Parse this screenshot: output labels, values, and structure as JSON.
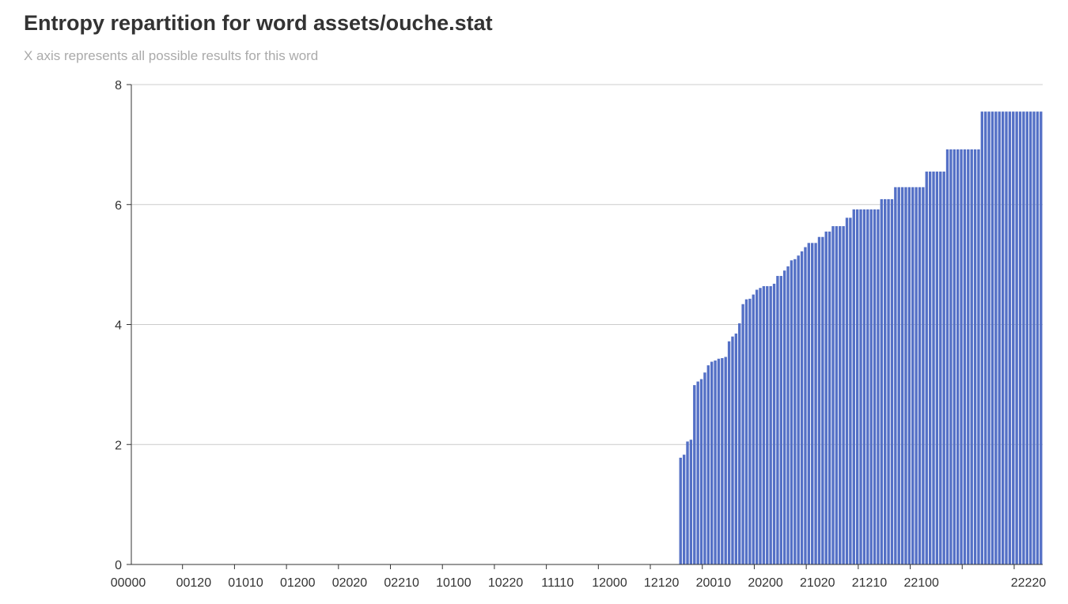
{
  "header": {
    "title": "Entropy repartition for word assets/ouche.stat",
    "subtitle": "X axis represents all possible results for this word"
  },
  "colors": {
    "bar": "#5470c6",
    "grid": "#cccccc",
    "axis": "#333333"
  },
  "chart_data": {
    "type": "bar",
    "title": "Entropy repartition for word assets/ouche.stat",
    "subtitle": "X axis represents all possible results for this word",
    "xlabel": "",
    "ylabel": "",
    "ylim": [
      0,
      8
    ],
    "yticks": [
      0,
      2,
      4,
      6,
      8
    ],
    "grid": true,
    "category_count": 243,
    "xtick_labels": [
      "00000",
      "00120",
      "01010",
      "01200",
      "02020",
      "02210",
      "10100",
      "10220",
      "11110",
      "12000",
      "12120",
      "20010",
      "20200",
      "21020",
      "21210",
      "22100",
      "22220"
    ],
    "values": [
      0,
      0,
      0,
      0,
      0,
      0,
      0,
      0,
      0,
      0,
      0,
      0,
      0,
      0,
      0,
      0,
      0,
      0,
      0,
      0,
      0,
      0,
      0,
      0,
      0,
      0,
      0,
      0,
      0,
      0,
      0,
      0,
      0,
      0,
      0,
      0,
      0,
      0,
      0,
      0,
      0,
      0,
      0,
      0,
      0,
      0,
      0,
      0,
      0,
      0,
      0,
      0,
      0,
      0,
      0,
      0,
      0,
      0,
      0,
      0,
      0,
      0,
      0,
      0,
      0,
      0,
      0,
      0,
      0,
      0,
      0,
      0,
      0,
      0,
      0,
      0,
      0,
      0,
      0,
      0,
      0,
      0,
      0,
      0,
      0,
      0,
      0,
      0,
      0,
      0,
      0,
      0,
      0,
      0,
      0,
      0,
      0,
      0,
      0,
      0,
      0,
      0,
      0,
      0,
      0,
      0,
      0,
      0,
      0,
      0,
      0,
      0,
      0,
      0,
      0,
      0,
      0,
      0,
      0,
      0,
      0,
      0,
      0,
      0,
      0,
      0,
      0,
      0,
      0,
      0,
      0,
      0,
      0,
      0,
      0,
      0,
      0,
      0,
      0,
      0,
      0,
      0,
      0,
      0,
      0,
      0,
      0,
      0,
      0,
      0,
      0,
      0,
      0,
      0,
      0,
      0,
      0,
      0,
      1.78,
      1.83,
      2.05,
      2.08,
      2.99,
      3.05,
      3.09,
      3.2,
      3.32,
      3.38,
      3.4,
      3.43,
      3.44,
      3.46,
      3.72,
      3.8,
      3.85,
      4.02,
      4.34,
      4.42,
      4.43,
      4.5,
      4.58,
      4.61,
      4.64,
      4.64,
      4.64,
      4.68,
      4.81,
      4.81,
      4.9,
      4.97,
      5.07,
      5.09,
      5.15,
      5.22,
      5.29,
      5.36,
      5.36,
      5.36,
      5.46,
      5.46,
      5.55,
      5.55,
      5.64,
      5.64,
      5.64,
      5.64,
      5.78,
      5.78,
      5.92,
      5.92,
      5.92,
      5.92,
      5.92,
      5.92,
      5.92,
      5.92,
      6.09,
      6.09,
      6.09,
      6.09,
      6.29,
      6.29,
      6.29,
      6.29,
      6.29,
      6.29,
      6.29,
      6.29,
      6.29,
      6.55,
      6.55,
      6.55,
      6.55,
      6.55,
      6.55,
      6.92,
      6.92,
      6.92,
      6.92,
      6.92,
      6.92,
      6.92,
      6.92,
      6.92,
      6.92,
      7.55,
      7.55,
      7.55,
      7.55,
      7.55,
      7.55,
      7.55,
      7.55,
      7.55,
      7.55,
      7.55,
      7.55,
      7.55,
      7.55,
      7.55,
      7.55,
      7.55,
      7.55
    ]
  }
}
